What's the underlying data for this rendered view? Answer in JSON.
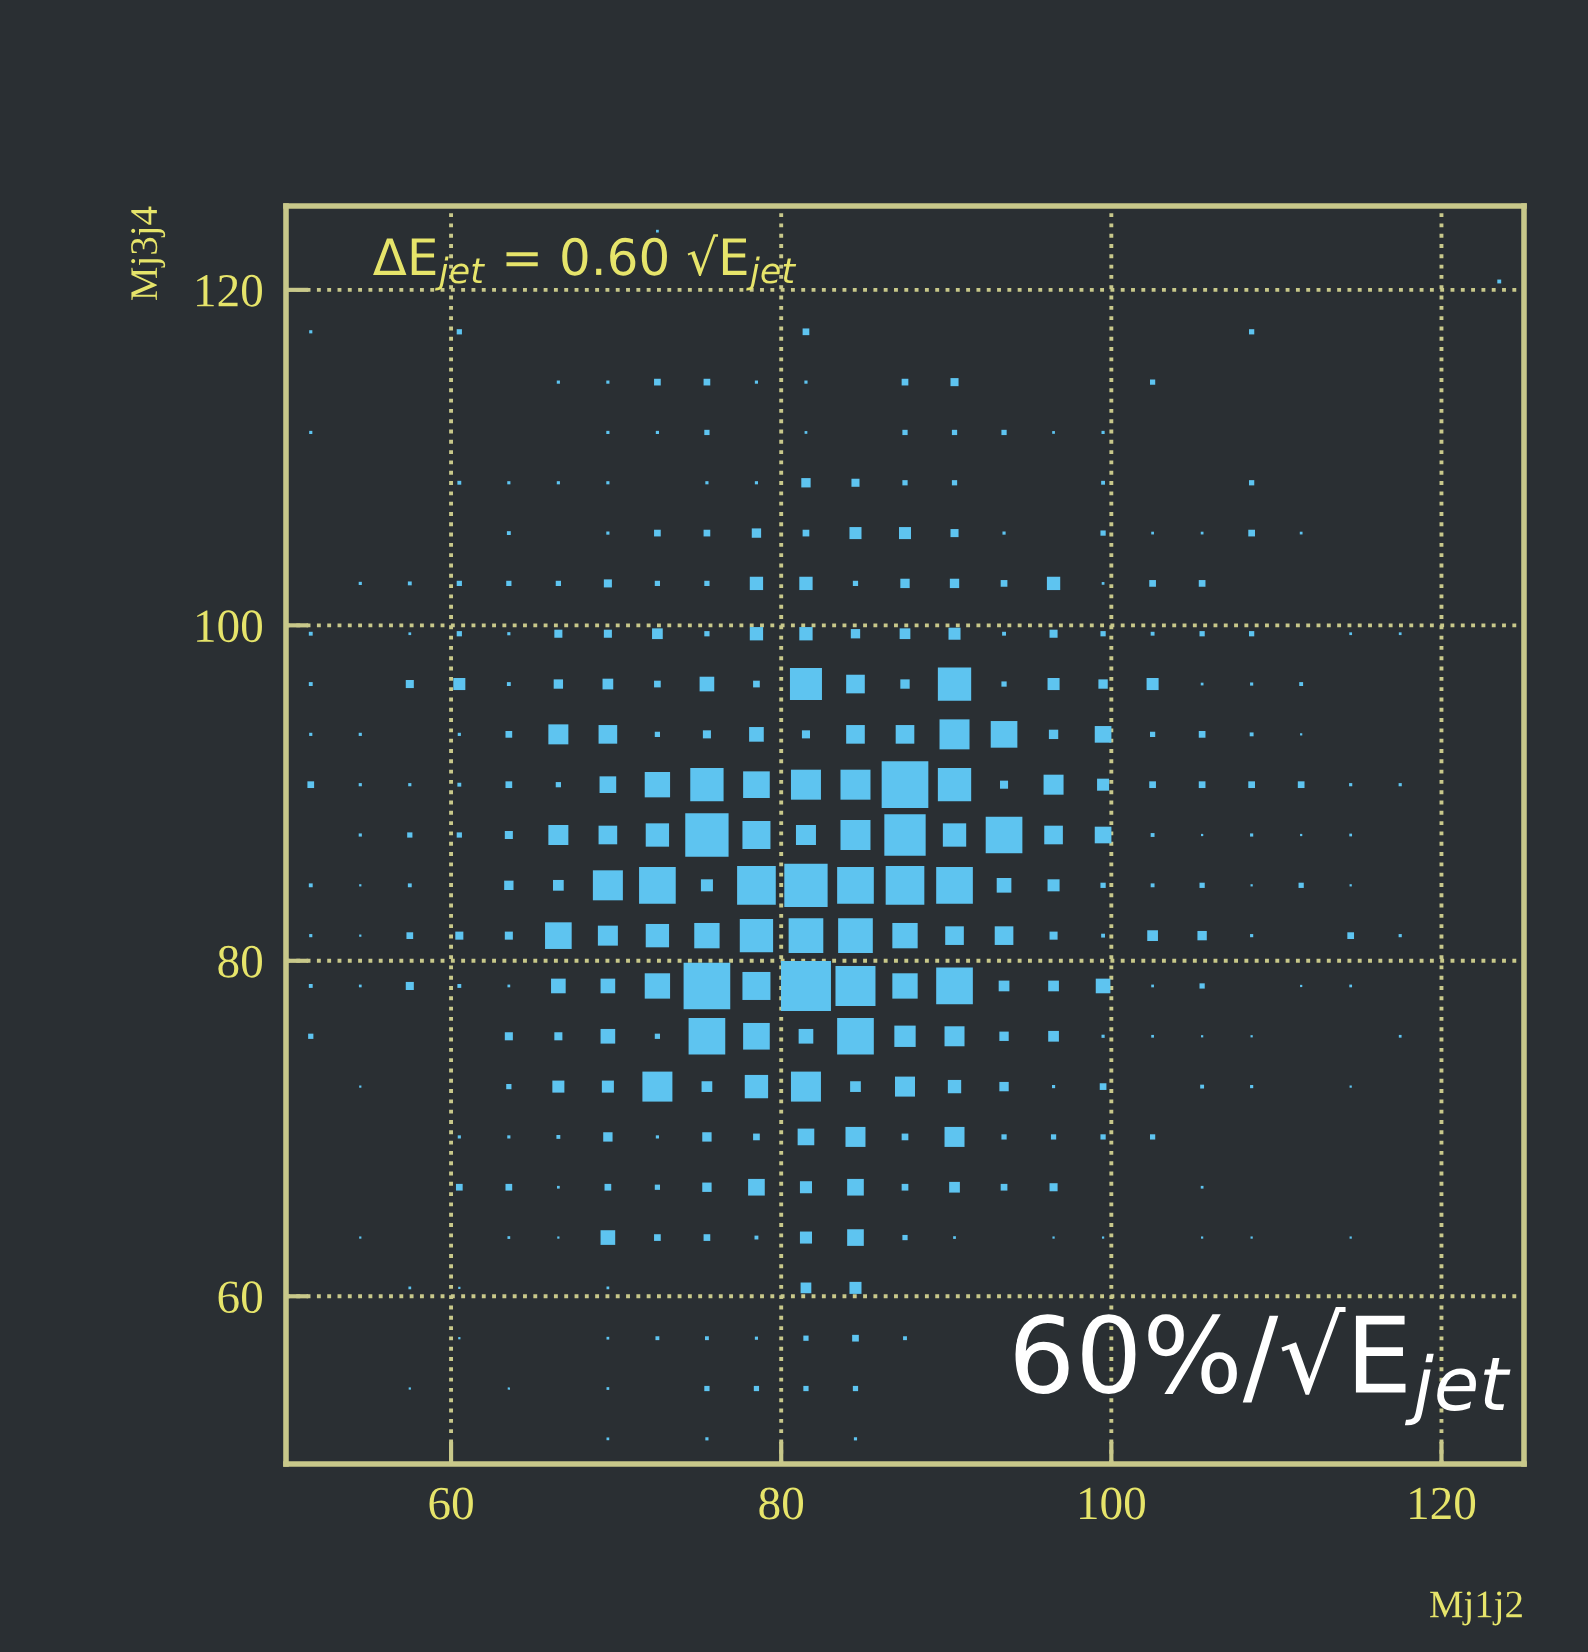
{
  "chart_data": {
    "type": "bubble",
    "xlabel": "Mj1j2",
    "ylabel": "Mj3j4",
    "xlim": [
      50,
      125
    ],
    "ylim": [
      50,
      125
    ],
    "xticks": [
      60,
      80,
      100,
      120
    ],
    "yticks": [
      60,
      80,
      100,
      120
    ],
    "grid": true,
    "marker": "square",
    "annotations": [
      "ΔE$_{jet}$ = 0.60 √E$_{jet}$",
      "60%/√E$_{jet}$"
    ],
    "series": [
      {
        "color": "#5ec4f0",
        "x": [
          72.5
        ],
        "values": [
          123.5
        ],
        "sizes": [
          0.003
        ]
      },
      {
        "color": "#5ec4f0",
        "x": [
          123.5
        ],
        "values": [
          120.5
        ],
        "sizes": [
          0.006
        ]
      },
      {
        "color": "#5ec4f0",
        "x": [
          51.5,
          60.5,
          81.5,
          108.5
        ],
        "values": [
          117.5,
          117.5,
          117.5,
          117.5
        ],
        "sizes": [
          0.004,
          0.011,
          0.018,
          0.011
        ]
      },
      {
        "color": "#5ec4f0",
        "x": [
          66.5,
          69.5,
          72.5,
          75.5,
          78.5,
          81.5,
          87.5,
          90.5,
          102.5
        ],
        "values": [
          114.5,
          114.5,
          114.5,
          114.5,
          114.5,
          114.5,
          114.5,
          114.5,
          114.5
        ],
        "sizes": [
          0.004,
          0.004,
          0.018,
          0.018,
          0.004,
          0.004,
          0.018,
          0.026,
          0.011
        ]
      },
      {
        "color": "#5ec4f0",
        "x": [
          51.5,
          69.5,
          72.5,
          75.5,
          81.5,
          87.5,
          90.5,
          93.5,
          96.5,
          99.5
        ],
        "values": [
          111.5,
          111.5,
          111.5,
          111.5,
          111.5,
          111.5,
          111.5,
          111.5,
          111.5,
          111.5
        ],
        "sizes": [
          0.004,
          0.004,
          0.004,
          0.011,
          0.003,
          0.011,
          0.011,
          0.011,
          0.003,
          0.004
        ]
      },
      {
        "color": "#5ec4f0",
        "x": [
          60.5,
          63.5,
          66.5,
          69.5,
          75.5,
          78.5,
          81.5,
          84.5,
          87.5,
          90.5,
          99.5,
          108.5
        ],
        "values": [
          108.5,
          108.5,
          108.5,
          108.5,
          108.5,
          108.5,
          108.5,
          108.5,
          108.5,
          108.5,
          108.5,
          108.5
        ],
        "sizes": [
          0.006,
          0.004,
          0.004,
          0.004,
          0.004,
          0.004,
          0.035,
          0.026,
          0.011,
          0.011,
          0.006,
          0.011
        ]
      },
      {
        "color": "#5ec4f0",
        "x": [
          63.5,
          69.5,
          72.5,
          75.5,
          78.5,
          81.5,
          84.5,
          87.5,
          90.5,
          93.5,
          99.5,
          102.5,
          105.5,
          108.5,
          111.5
        ],
        "values": [
          105.5,
          105.5,
          105.5,
          105.5,
          105.5,
          105.5,
          105.5,
          105.5,
          105.5,
          105.5,
          105.5,
          105.5,
          105.5,
          105.5,
          105.5
        ],
        "sizes": [
          0.006,
          0.004,
          0.018,
          0.018,
          0.035,
          0.018,
          0.058,
          0.058,
          0.026,
          0.004,
          0.011,
          0.003,
          0.003,
          0.018,
          0.003
        ]
      },
      {
        "color": "#5ec4f0",
        "x": [
          54.5,
          57.5,
          60.5,
          63.5,
          66.5,
          69.5,
          72.5,
          75.5,
          78.5,
          81.5,
          84.5,
          87.5,
          90.5,
          93.5,
          96.5,
          99.5,
          102.5,
          105.5
        ],
        "values": [
          102.5,
          102.5,
          102.5,
          102.5,
          102.5,
          102.5,
          102.5,
          102.5,
          102.5,
          102.5,
          102.5,
          102.5,
          102.5,
          102.5,
          102.5,
          102.5,
          102.5,
          102.5
        ],
        "sizes": [
          0.004,
          0.006,
          0.011,
          0.011,
          0.011,
          0.026,
          0.011,
          0.011,
          0.071,
          0.071,
          0.011,
          0.035,
          0.035,
          0.018,
          0.071,
          0.003,
          0.018,
          0.018
        ]
      },
      {
        "color": "#5ec4f0",
        "x": [
          51.5,
          57.5,
          60.5,
          63.5,
          66.5,
          69.5,
          72.5,
          75.5,
          78.5,
          81.5,
          84.5,
          87.5,
          90.5,
          93.5,
          96.5,
          99.5,
          102.5,
          105.5,
          108.5,
          114.5,
          117.5
        ],
        "values": [
          99.5,
          99.5,
          99.5,
          99.5,
          99.5,
          99.5,
          99.5,
          99.5,
          99.5,
          99.5,
          99.5,
          99.5,
          99.5,
          99.5,
          99.5,
          99.5,
          99.5,
          99.5,
          99.5,
          99.5,
          99.5
        ],
        "sizes": [
          0.006,
          0.003,
          0.011,
          0.004,
          0.026,
          0.026,
          0.046,
          0.011,
          0.071,
          0.071,
          0.035,
          0.046,
          0.058,
          0.006,
          0.026,
          0.011,
          0.006,
          0.011,
          0.011,
          0.003,
          0.003
        ]
      },
      {
        "color": "#5ec4f0",
        "x": [
          51.5,
          57.5,
          60.5,
          63.5,
          66.5,
          69.5,
          72.5,
          75.5,
          78.5,
          81.5,
          84.5,
          87.5,
          90.5,
          93.5,
          96.5,
          99.5,
          102.5,
          105.5,
          108.5,
          111.5
        ],
        "values": [
          96.5,
          96.5,
          96.5,
          96.5,
          96.5,
          96.5,
          96.5,
          96.5,
          96.5,
          96.5,
          96.5,
          96.5,
          96.5,
          96.5,
          96.5,
          96.5,
          96.5,
          96.5,
          96.5,
          96.5
        ],
        "sizes": [
          0.006,
          0.026,
          0.058,
          0.006,
          0.035,
          0.046,
          0.018,
          0.086,
          0.018,
          0.41,
          0.139,
          0.035,
          0.444,
          0.011,
          0.058,
          0.035,
          0.058,
          0.003,
          0.004,
          0.006
        ]
      },
      {
        "color": "#5ec4f0",
        "x": [
          51.5,
          54.5,
          60.5,
          63.5,
          66.5,
          69.5,
          72.5,
          75.5,
          78.5,
          81.5,
          84.5,
          87.5,
          90.5,
          93.5,
          96.5,
          99.5,
          102.5,
          105.5,
          108.5,
          111.5
        ],
        "values": [
          93.5,
          93.5,
          93.5,
          93.5,
          93.5,
          93.5,
          93.5,
          93.5,
          93.5,
          93.5,
          93.5,
          93.5,
          93.5,
          93.5,
          93.5,
          93.5,
          93.5,
          93.5,
          93.5,
          93.5
        ],
        "sizes": [
          0.004,
          0.004,
          0.004,
          0.018,
          0.16,
          0.139,
          0.011,
          0.026,
          0.086,
          0.026,
          0.139,
          0.139,
          0.36,
          0.284,
          0.035,
          0.111,
          0.011,
          0.018,
          0.006,
          0.002
        ]
      },
      {
        "color": "#5ec4f0",
        "x": [
          51.5,
          54.5,
          57.5,
          60.5,
          63.5,
          66.5,
          69.5,
          72.5,
          75.5,
          78.5,
          81.5,
          84.5,
          87.5,
          90.5,
          93.5,
          96.5,
          99.5,
          102.5,
          105.5,
          108.5,
          111.5,
          114.5,
          117.5
        ],
        "values": [
          90.5,
          90.5,
          90.5,
          90.5,
          90.5,
          90.5,
          90.5,
          90.5,
          90.5,
          90.5,
          90.5,
          90.5,
          90.5,
          90.5,
          90.5,
          90.5,
          90.5,
          90.5,
          90.5,
          90.5,
          90.5,
          90.5,
          90.5
        ],
        "sizes": [
          0.018,
          0.004,
          0.004,
          0.006,
          0.018,
          0.011,
          0.111,
          0.257,
          0.444,
          0.284,
          0.36,
          0.36,
          0.871,
          0.444,
          0.026,
          0.16,
          0.058,
          0.018,
          0.018,
          0.018,
          0.018,
          0.004,
          0.004
        ]
      },
      {
        "color": "#5ec4f0",
        "x": [
          54.5,
          57.5,
          60.5,
          63.5,
          66.5,
          69.5,
          72.5,
          75.5,
          78.5,
          81.5,
          84.5,
          87.5,
          90.5,
          93.5,
          96.5,
          99.5,
          102.5,
          105.5,
          108.5,
          111.5,
          114.5
        ],
        "values": [
          87.5,
          87.5,
          87.5,
          87.5,
          87.5,
          87.5,
          87.5,
          87.5,
          87.5,
          87.5,
          87.5,
          87.5,
          87.5,
          87.5,
          87.5,
          87.5,
          87.5,
          87.5,
          87.5,
          87.5,
          87.5
        ],
        "sizes": [
          0.004,
          0.011,
          0.011,
          0.026,
          0.16,
          0.139,
          0.218,
          0.751,
          0.314,
          0.16,
          0.36,
          0.683,
          0.218,
          0.538,
          0.139,
          0.111,
          0.006,
          0.002,
          0.004,
          0.002,
          0.003
        ]
      },
      {
        "color": "#5ec4f0",
        "x": [
          51.5,
          54.5,
          57.5,
          63.5,
          66.5,
          69.5,
          72.5,
          75.5,
          78.5,
          81.5,
          84.5,
          87.5,
          90.5,
          93.5,
          96.5,
          99.5,
          102.5,
          105.5,
          108.5,
          111.5,
          114.5
        ],
        "values": [
          84.5,
          84.5,
          84.5,
          84.5,
          84.5,
          84.5,
          84.5,
          84.5,
          84.5,
          84.5,
          84.5,
          84.5,
          84.5,
          84.5,
          84.5,
          84.5,
          84.5,
          84.5,
          84.5,
          84.5,
          84.5
        ],
        "sizes": [
          0.006,
          0.002,
          0.006,
          0.035,
          0.046,
          0.36,
          0.538,
          0.058,
          0.598,
          0.751,
          0.538,
          0.598,
          0.538,
          0.086,
          0.058,
          0.011,
          0.006,
          0.011,
          0.002,
          0.011,
          0.002
        ]
      },
      {
        "color": "#5ec4f0",
        "x": [
          51.5,
          54.5,
          57.5,
          60.5,
          63.5,
          66.5,
          69.5,
          72.5,
          75.5,
          78.5,
          81.5,
          84.5,
          87.5,
          90.5,
          93.5,
          96.5,
          99.5,
          102.5,
          105.5,
          108.5,
          114.5,
          117.5
        ],
        "values": [
          81.5,
          81.5,
          81.5,
          81.5,
          81.5,
          81.5,
          81.5,
          81.5,
          81.5,
          81.5,
          81.5,
          81.5,
          81.5,
          81.5,
          81.5,
          81.5,
          81.5,
          81.5,
          81.5,
          81.5,
          81.5,
          81.5
        ],
        "sizes": [
          0.004,
          0.002,
          0.018,
          0.026,
          0.026,
          0.284,
          0.16,
          0.218,
          0.257,
          0.444,
          0.481,
          0.481,
          0.257,
          0.139,
          0.139,
          0.026,
          0.006,
          0.046,
          0.035,
          0.004,
          0.018,
          0.004
        ]
      },
      {
        "color": "#5ec4f0",
        "x": [
          51.5,
          54.5,
          57.5,
          60.5,
          63.5,
          66.5,
          69.5,
          72.5,
          75.5,
          78.5,
          81.5,
          84.5,
          87.5,
          90.5,
          93.5,
          96.5,
          99.5,
          102.5,
          105.5,
          111.5,
          114.5
        ],
        "values": [
          78.5,
          78.5,
          78.5,
          78.5,
          78.5,
          78.5,
          78.5,
          78.5,
          78.5,
          78.5,
          78.5,
          78.5,
          78.5,
          78.5,
          78.5,
          78.5,
          78.5,
          78.5,
          78.5,
          78.5,
          78.5
        ],
        "sizes": [
          0.006,
          0.003,
          0.026,
          0.006,
          0.003,
          0.086,
          0.086,
          0.257,
          0.871,
          0.314,
          1,
          0.64,
          0.257,
          0.538,
          0.046,
          0.046,
          0.086,
          0.003,
          0.011,
          0.002,
          0.003
        ]
      },
      {
        "color": "#5ec4f0",
        "x": [
          51.5,
          63.5,
          66.5,
          69.5,
          72.5,
          75.5,
          78.5,
          81.5,
          84.5,
          87.5,
          90.5,
          93.5,
          96.5,
          99.5,
          102.5,
          105.5,
          108.5,
          117.5
        ],
        "values": [
          75.5,
          75.5,
          75.5,
          75.5,
          75.5,
          75.5,
          75.5,
          75.5,
          75.5,
          75.5,
          75.5,
          75.5,
          75.5,
          75.5,
          75.5,
          75.5,
          75.5,
          75.5
        ],
        "sizes": [
          0.011,
          0.026,
          0.026,
          0.086,
          0.011,
          0.538,
          0.284,
          0.086,
          0.538,
          0.182,
          0.16,
          0.035,
          0.046,
          0.004,
          0.003,
          0.002,
          0.002,
          0.003
        ]
      },
      {
        "color": "#5ec4f0",
        "x": [
          54.5,
          63.5,
          66.5,
          69.5,
          72.5,
          75.5,
          78.5,
          81.5,
          84.5,
          87.5,
          90.5,
          93.5,
          96.5,
          99.5,
          105.5,
          108.5,
          114.5
        ],
        "values": [
          72.5,
          72.5,
          72.5,
          72.5,
          72.5,
          72.5,
          72.5,
          72.5,
          72.5,
          72.5,
          72.5,
          72.5,
          72.5,
          72.5,
          72.5,
          72.5,
          72.5
        ],
        "sizes": [
          0.002,
          0.011,
          0.058,
          0.058,
          0.36,
          0.046,
          0.218,
          0.36,
          0.046,
          0.16,
          0.071,
          0.035,
          0.004,
          0.018,
          0.006,
          0.004,
          0.002
        ]
      },
      {
        "color": "#5ec4f0",
        "x": [
          60.5,
          63.5,
          66.5,
          69.5,
          72.5,
          75.5,
          78.5,
          81.5,
          84.5,
          87.5,
          90.5,
          93.5,
          96.5,
          99.5,
          102.5
        ],
        "values": [
          69.5,
          69.5,
          69.5,
          69.5,
          69.5,
          69.5,
          69.5,
          69.5,
          69.5,
          69.5,
          69.5,
          69.5,
          69.5,
          69.5,
          69.5
        ],
        "sizes": [
          0.004,
          0.004,
          0.006,
          0.035,
          0.004,
          0.035,
          0.018,
          0.111,
          0.16,
          0.018,
          0.16,
          0.011,
          0.011,
          0.011,
          0.011
        ]
      },
      {
        "color": "#5ec4f0",
        "x": [
          60.5,
          63.5,
          66.5,
          69.5,
          72.5,
          75.5,
          78.5,
          81.5,
          84.5,
          87.5,
          90.5,
          93.5,
          96.5,
          105.5
        ],
        "values": [
          66.5,
          66.5,
          66.5,
          66.5,
          66.5,
          66.5,
          66.5,
          66.5,
          66.5,
          66.5,
          66.5,
          66.5,
          66.5,
          66.5
        ],
        "sizes": [
          0.018,
          0.018,
          0.003,
          0.018,
          0.011,
          0.035,
          0.111,
          0.058,
          0.111,
          0.018,
          0.046,
          0.018,
          0.026,
          0.003
        ]
      },
      {
        "color": "#5ec4f0",
        "x": [
          54.5,
          63.5,
          66.5,
          69.5,
          72.5,
          75.5,
          78.5,
          81.5,
          84.5,
          87.5,
          90.5,
          96.5,
          99.5,
          105.5,
          108.5,
          114.5
        ],
        "values": [
          63.5,
          63.5,
          63.5,
          63.5,
          63.5,
          63.5,
          63.5,
          63.5,
          63.5,
          63.5,
          63.5,
          63.5,
          63.5,
          63.5,
          63.5,
          63.5
        ],
        "sizes": [
          0.002,
          0.003,
          0.002,
          0.086,
          0.018,
          0.018,
          0.006,
          0.058,
          0.111,
          0.011,
          0.003,
          0.002,
          0.002,
          0.002,
          0.002,
          0.002
        ]
      },
      {
        "color": "#5ec4f0",
        "x": [
          57.5,
          60.5,
          69.5,
          81.5,
          84.5
        ],
        "values": [
          60.5,
          60.5,
          60.5,
          60.5,
          60.5
        ],
        "sizes": [
          0.003,
          0.002,
          0.003,
          0.046,
          0.058
        ]
      },
      {
        "color": "#5ec4f0",
        "x": [
          60.5,
          69.5,
          72.5,
          75.5,
          78.5,
          81.5,
          84.5,
          87.5
        ],
        "values": [
          57.5,
          57.5,
          57.5,
          57.5,
          57.5,
          57.5,
          57.5,
          57.5
        ],
        "sizes": [
          0.002,
          0.003,
          0.006,
          0.006,
          0.004,
          0.011,
          0.018,
          0.006
        ]
      },
      {
        "color": "#5ec4f0",
        "x": [
          57.5,
          63.5,
          69.5,
          75.5,
          78.5,
          81.5,
          84.5
        ],
        "values": [
          54.5,
          54.5,
          54.5,
          54.5,
          54.5,
          54.5,
          54.5
        ],
        "sizes": [
          0.002,
          0.002,
          0.003,
          0.011,
          0.011,
          0.011,
          0.011
        ]
      },
      {
        "color": "#5ec4f0",
        "x": [
          69.5,
          75.5,
          84.5
        ],
        "values": [
          51.5,
          51.5,
          51.5
        ],
        "sizes": [
          0.003,
          0.004,
          0.004
        ]
      }
    ]
  }
}
